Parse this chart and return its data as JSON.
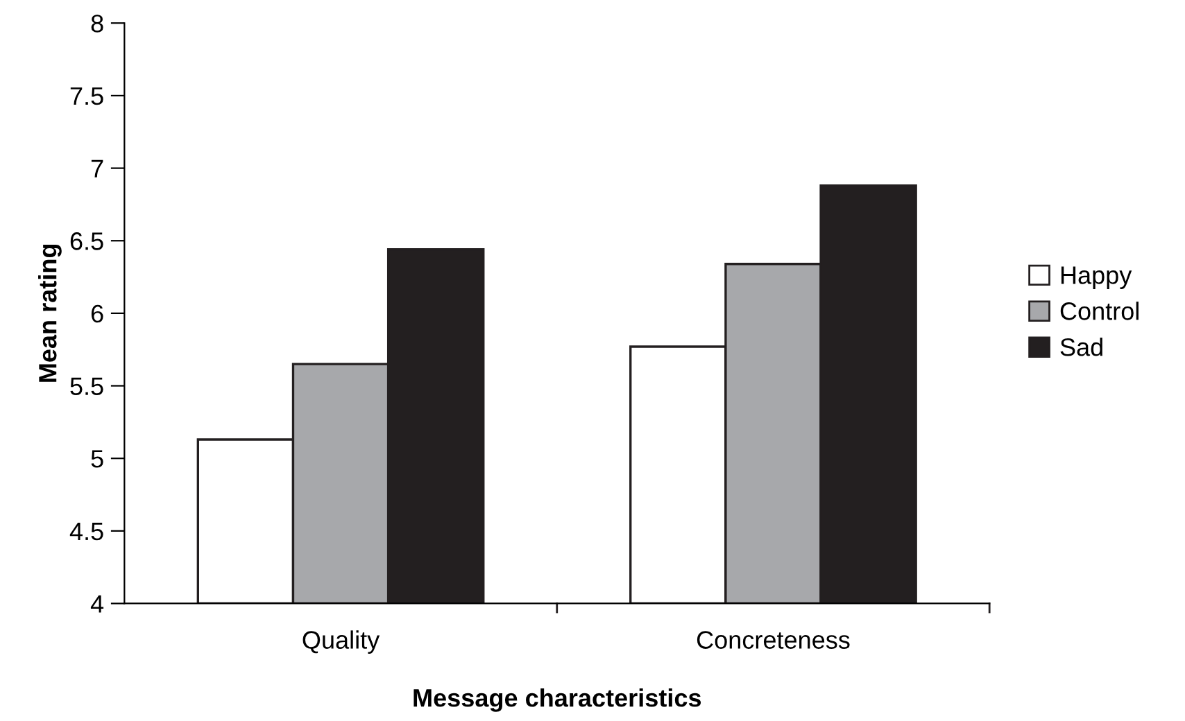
{
  "chart_data": {
    "type": "bar",
    "xlabel": "Message characteristics",
    "ylabel": "Mean rating",
    "categories": [
      "Quality",
      "Concreteness"
    ],
    "series": [
      {
        "name": "Happy",
        "color": "#ffffff",
        "values": [
          5.13,
          5.77
        ]
      },
      {
        "name": "Control",
        "color": "#a7a8ab",
        "values": [
          5.65,
          6.34
        ]
      },
      {
        "name": "Sad",
        "color": "#231f20",
        "values": [
          6.44,
          6.88
        ]
      }
    ],
    "ylim": [
      4,
      8
    ],
    "yticks": [
      4,
      4.5,
      5,
      5.5,
      6,
      6.5,
      7,
      7.5,
      8
    ],
    "grid": false,
    "legend": "right"
  }
}
